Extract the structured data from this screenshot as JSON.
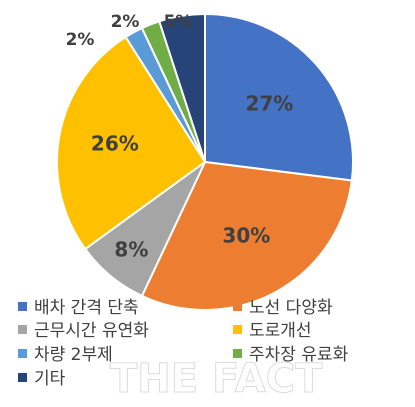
{
  "chart_data": {
    "type": "pie",
    "title": "",
    "slices": [
      {
        "label": "배차 간격 단축",
        "value": 27,
        "display": "27%",
        "color": "#4472C4"
      },
      {
        "label": "노선 다양화",
        "value": 30,
        "display": "30%",
        "color": "#ED7D31"
      },
      {
        "label": "근무시간 유연화",
        "value": 8,
        "display": "8%",
        "color": "#A5A5A5"
      },
      {
        "label": "도로개선",
        "value": 26,
        "display": "26%",
        "color": "#FFC000"
      },
      {
        "label": "차량 2부제",
        "value": 2,
        "display": "2%",
        "color": "#5B9BD5"
      },
      {
        "label": "주차장 유료화",
        "value": 2,
        "display": "2%",
        "color": "#70AD47"
      },
      {
        "label": "기타",
        "value": 5,
        "display": "5%",
        "color": "#264478"
      }
    ],
    "legend": {
      "placement": "bottom"
    }
  },
  "watermark": {
    "text": "THE FACT"
  }
}
